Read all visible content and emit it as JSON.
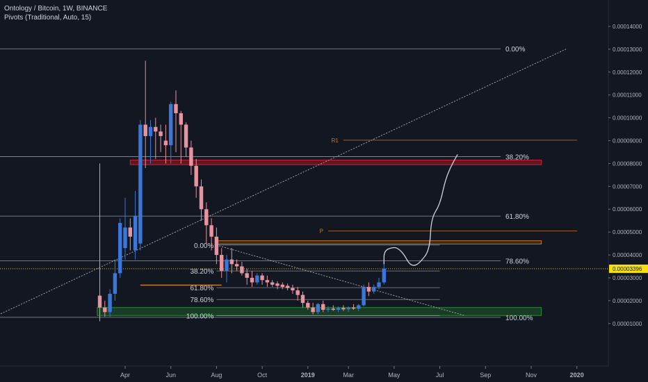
{
  "header": {
    "symbol_line": "Ontology / Bitcoin, 1W, BINANCE",
    "indicator_line": "Pivots (Traditional, Auto, 15)"
  },
  "colors": {
    "background": "#131722",
    "up": "#3a77d8",
    "down": "#e8949e",
    "text": "#d1d4dc",
    "grid_line": "#787b86",
    "pivot": "#c77a2a",
    "red_zone": "#a01423",
    "green_zone": "#1e5b28",
    "current_price": "#f5e20a",
    "drawing": "#d1d4dc"
  },
  "chart_data": {
    "type": "candlestick",
    "y_axis": {
      "ticks": [
        "0.00014000",
        "0.00013000",
        "0.00012000",
        "0.00011000",
        "0.00010000",
        "0.00009000",
        "0.00008000",
        "0.00007000",
        "0.00006000",
        "0.00005000",
        "0.00004000",
        "0.00003000",
        "0.00002000",
        "0.00001000"
      ],
      "tick_values": [
        0.00014,
        0.00013,
        0.00012,
        0.00011,
        0.0001,
        9e-05,
        8e-05,
        7e-05,
        6e-05,
        5e-05,
        4e-05,
        3e-05,
        2e-05,
        1e-05
      ],
      "range": [
        -7e-07,
        0.0001485
      ]
    },
    "x_axis": {
      "ticks": [
        "Apr",
        "Jun",
        "Aug",
        "Oct",
        "2019",
        "Mar",
        "May",
        "Jul",
        "Sep",
        "Nov",
        "2020"
      ],
      "tick_weeks": [
        5,
        14,
        23,
        32,
        41,
        49,
        58,
        67,
        76,
        85,
        94
      ]
    },
    "current_price": "0.00003396",
    "current_price_value": 3.396e-05,
    "candles": [
      {
        "w": 0,
        "o": 2.22e-05,
        "h": 8e-05,
        "l": 1.1e-05,
        "c": 1.7e-05
      },
      {
        "w": 1,
        "o": 1.7e-05,
        "h": 2e-05,
        "l": 1.3e-05,
        "c": 1.5e-05
      },
      {
        "w": 2,
        "o": 1.5e-05,
        "h": 2.5e-05,
        "l": 1.3e-05,
        "c": 2.3e-05
      },
      {
        "w": 3,
        "o": 2.3e-05,
        "h": 3.8e-05,
        "l": 2e-05,
        "c": 3.2e-05
      },
      {
        "w": 4,
        "o": 3.2e-05,
        "h": 5.6e-05,
        "l": 3e-05,
        "c": 5.4e-05
      },
      {
        "w": 5,
        "o": 4.3e-05,
        "h": 6.5e-05,
        "l": 3.8e-05,
        "c": 5.2e-05
      },
      {
        "w": 6,
        "o": 5.2e-05,
        "h": 5.6e-05,
        "l": 4.2e-05,
        "c": 4.8e-05
      },
      {
        "w": 7,
        "o": 4.2e-05,
        "h": 6.8e-05,
        "l": 3.8e-05,
        "c": 5.7e-05
      },
      {
        "w": 8,
        "o": 4.5e-05,
        "h": 9.9e-05,
        "l": 4.2e-05,
        "c": 9.7e-05
      },
      {
        "w": 9,
        "o": 9.7e-05,
        "h": 0.000125,
        "l": 7.8e-05,
        "c": 9.2e-05
      },
      {
        "w": 10,
        "o": 9.2e-05,
        "h": 9.9e-05,
        "l": 8e-05,
        "c": 9.6e-05
      },
      {
        "w": 11,
        "o": 9.6e-05,
        "h": 0.0001,
        "l": 8.2e-05,
        "c": 9.4e-05
      },
      {
        "w": 12,
        "o": 9.4e-05,
        "h": 9.7e-05,
        "l": 8.5e-05,
        "c": 9.2e-05
      },
      {
        "w": 13,
        "o": 9e-05,
        "h": 9.7e-05,
        "l": 8e-05,
        "c": 8.8e-05
      },
      {
        "w": 14,
        "o": 8.8e-05,
        "h": 0.000107,
        "l": 8e-05,
        "c": 0.000106
      },
      {
        "w": 15,
        "o": 0.000106,
        "h": 0.000112,
        "l": 8.5e-05,
        "c": 0.000102
      },
      {
        "w": 16,
        "o": 0.000102,
        "h": 0.000103,
        "l": 8e-05,
        "c": 9.7e-05
      },
      {
        "w": 17,
        "o": 9.7e-05,
        "h": 9.8e-05,
        "l": 8.3e-05,
        "c": 8.7e-05
      },
      {
        "w": 18,
        "o": 8.7e-05,
        "h": 9e-05,
        "l": 7.5e-05,
        "c": 7.9e-05
      },
      {
        "w": 19,
        "o": 7.9e-05,
        "h": 8.2e-05,
        "l": 6.5e-05,
        "c": 7e-05
      },
      {
        "w": 20,
        "o": 7e-05,
        "h": 7.3e-05,
        "l": 5.5e-05,
        "c": 6e-05
      },
      {
        "w": 21,
        "o": 6e-05,
        "h": 6.3e-05,
        "l": 4.5e-05,
        "c": 5.3e-05
      },
      {
        "w": 22,
        "o": 5.3e-05,
        "h": 5.6e-05,
        "l": 4.2e-05,
        "c": 4.8e-05
      },
      {
        "w": 23,
        "o": 4.8e-05,
        "h": 5.2e-05,
        "l": 3.6e-05,
        "c": 4e-05
      },
      {
        "w": 24,
        "o": 4e-05,
        "h": 4.3e-05,
        "l": 3e-05,
        "c": 3.3e-05
      },
      {
        "w": 25,
        "o": 3.3e-05,
        "h": 4e-05,
        "l": 2.8e-05,
        "c": 3.8e-05
      },
      {
        "w": 26,
        "o": 3.8e-05,
        "h": 4.3e-05,
        "l": 3.2e-05,
        "c": 3.6e-05
      },
      {
        "w": 27,
        "o": 3.6e-05,
        "h": 3.8e-05,
        "l": 3.3e-05,
        "c": 3.5e-05
      },
      {
        "w": 28,
        "o": 3.5e-05,
        "h": 3.7e-05,
        "l": 3.1e-05,
        "c": 3.2e-05
      },
      {
        "w": 29,
        "o": 3.2e-05,
        "h": 3.4e-05,
        "l": 2.7e-05,
        "c": 3e-05
      },
      {
        "w": 30,
        "o": 3e-05,
        "h": 3.3e-05,
        "l": 2.6e-05,
        "c": 2.8e-05
      },
      {
        "w": 31,
        "o": 2.8e-05,
        "h": 3.2e-05,
        "l": 2.7e-05,
        "c": 3.1e-05
      },
      {
        "w": 32,
        "o": 3.1e-05,
        "h": 3.2e-05,
        "l": 2.7e-05,
        "c": 2.9e-05
      },
      {
        "w": 33,
        "o": 2.9e-05,
        "h": 3.1e-05,
        "l": 2.6e-05,
        "c": 2.8e-05
      },
      {
        "w": 34,
        "o": 2.8e-05,
        "h": 2.9e-05,
        "l": 2.6e-05,
        "c": 2.7e-05
      },
      {
        "w": 35,
        "o": 2.75e-05,
        "h": 2.85e-05,
        "l": 2.5e-05,
        "c": 2.65e-05
      },
      {
        "w": 36,
        "o": 2.7e-05,
        "h": 2.8e-05,
        "l": 2.5e-05,
        "c": 2.6e-05
      },
      {
        "w": 37,
        "o": 2.65e-05,
        "h": 2.75e-05,
        "l": 2.45e-05,
        "c": 2.55e-05
      },
      {
        "w": 38,
        "o": 2.55e-05,
        "h": 2.7e-05,
        "l": 2.3e-05,
        "c": 2.45e-05
      },
      {
        "w": 39,
        "o": 2.45e-05,
        "h": 2.6e-05,
        "l": 2e-05,
        "c": 2.25e-05
      },
      {
        "w": 40,
        "o": 2.25e-05,
        "h": 2.4e-05,
        "l": 1.7e-05,
        "c": 1.9e-05
      },
      {
        "w": 41,
        "o": 1.9e-05,
        "h": 2e-05,
        "l": 1.6e-05,
        "c": 1.7e-05
      },
      {
        "w": 42,
        "o": 1.7e-05,
        "h": 1.9e-05,
        "l": 1.4e-05,
        "c": 1.5e-05
      },
      {
        "w": 43,
        "o": 1.5e-05,
        "h": 1.9e-05,
        "l": 1.4e-05,
        "c": 1.85e-05
      },
      {
        "w": 44,
        "o": 1.85e-05,
        "h": 2e-05,
        "l": 1.5e-05,
        "c": 1.6e-05
      },
      {
        "w": 45,
        "o": 1.6e-05,
        "h": 1.75e-05,
        "l": 1.5e-05,
        "c": 1.65e-05
      },
      {
        "w": 46,
        "o": 1.65e-05,
        "h": 1.8e-05,
        "l": 1.55e-05,
        "c": 1.6e-05
      },
      {
        "w": 47,
        "o": 1.6e-05,
        "h": 1.75e-05,
        "l": 1.5e-05,
        "c": 1.68e-05
      },
      {
        "w": 48,
        "o": 1.68e-05,
        "h": 1.8e-05,
        "l": 1.55e-05,
        "c": 1.62e-05
      },
      {
        "w": 49,
        "o": 1.62e-05,
        "h": 1.75e-05,
        "l": 1.5e-05,
        "c": 1.7e-05
      },
      {
        "w": 50,
        "o": 1.7e-05,
        "h": 1.85e-05,
        "l": 1.6e-05,
        "c": 1.65e-05
      },
      {
        "w": 51,
        "o": 1.65e-05,
        "h": 1.85e-05,
        "l": 1.55e-05,
        "c": 1.8e-05
      },
      {
        "w": 52,
        "o": 1.8e-05,
        "h": 2.7e-05,
        "l": 1.75e-05,
        "c": 2.6e-05
      },
      {
        "w": 53,
        "o": 2.6e-05,
        "h": 2.8e-05,
        "l": 2.2e-05,
        "c": 2.4e-05
      },
      {
        "w": 54,
        "o": 2.4e-05,
        "h": 2.7e-05,
        "l": 2.3e-05,
        "c": 2.6e-05
      },
      {
        "w": 55,
        "o": 2.6e-05,
        "h": 3e-05,
        "l": 2.5e-05,
        "c": 2.8e-05
      },
      {
        "w": 56,
        "o": 2.8e-05,
        "h": 3.7e-05,
        "l": 2.7e-05,
        "c": 3.4e-05
      }
    ],
    "fib_big": {
      "levels": [
        {
          "label": "0.00%",
          "value": 0.0001302
        },
        {
          "label": "38.20%",
          "value": 8.3e-05
        },
        {
          "label": "61.80%",
          "value": 5.7e-05
        },
        {
          "label": "78.60%",
          "value": 3.74e-05
        },
        {
          "label": "100.00%",
          "value": 1.27e-05
        }
      ],
      "trend": {
        "w1": -21,
        "v1": 1.27e-05,
        "w2": 92,
        "v2": 0.0001302
      }
    },
    "fib_small": {
      "levels": [
        {
          "label": "0.00%",
          "value": 4.43e-05
        },
        {
          "label": "38.20%",
          "value": 3.3e-05
        },
        {
          "label": "61.80%",
          "value": 2.57e-05
        },
        {
          "label": "78.60%",
          "value": 2.05e-05
        },
        {
          "label": "100.00%",
          "value": 1.34e-05
        }
      ],
      "trend": {
        "w1": 23,
        "v1": 4.43e-05,
        "w2": 72,
        "v2": 1.34e-05
      }
    },
    "pivots": [
      {
        "label": "R1",
        "value": 9.02e-05
      },
      {
        "label": "P",
        "value": 5.05e-05
      }
    ],
    "zones": [
      {
        "name": "red",
        "w1": 6,
        "w2": 87,
        "top": 8.15e-05,
        "bottom": 7.95e-05
      },
      {
        "name": "orange",
        "w1": 23,
        "w2": 87,
        "top": 4.62e-05,
        "bottom": 4.48e-05
      },
      {
        "name": "green",
        "w1": -0.5,
        "w2": 87,
        "top": 1.7e-05,
        "bottom": 1.35e-05
      }
    ],
    "box": {
      "w1": 8,
      "w2": 24,
      "value": 2.68e-05
    },
    "projection": [
      [
        56,
        3.6e-05
      ],
      [
        56,
        4.2e-05
      ],
      [
        58,
        4.35e-05
      ],
      [
        59,
        4.25e-05
      ],
      [
        60,
        4e-05
      ],
      [
        61,
        3.6e-05
      ],
      [
        62,
        3.52e-05
      ],
      [
        63,
        3.65e-05
      ],
      [
        65,
        4.2e-05
      ],
      [
        65.3,
        5.6e-05
      ],
      [
        67,
        6.2e-05
      ],
      [
        68,
        7.2e-05
      ],
      [
        69,
        7.8e-05
      ],
      [
        70.5,
        8.4e-05
      ]
    ]
  }
}
